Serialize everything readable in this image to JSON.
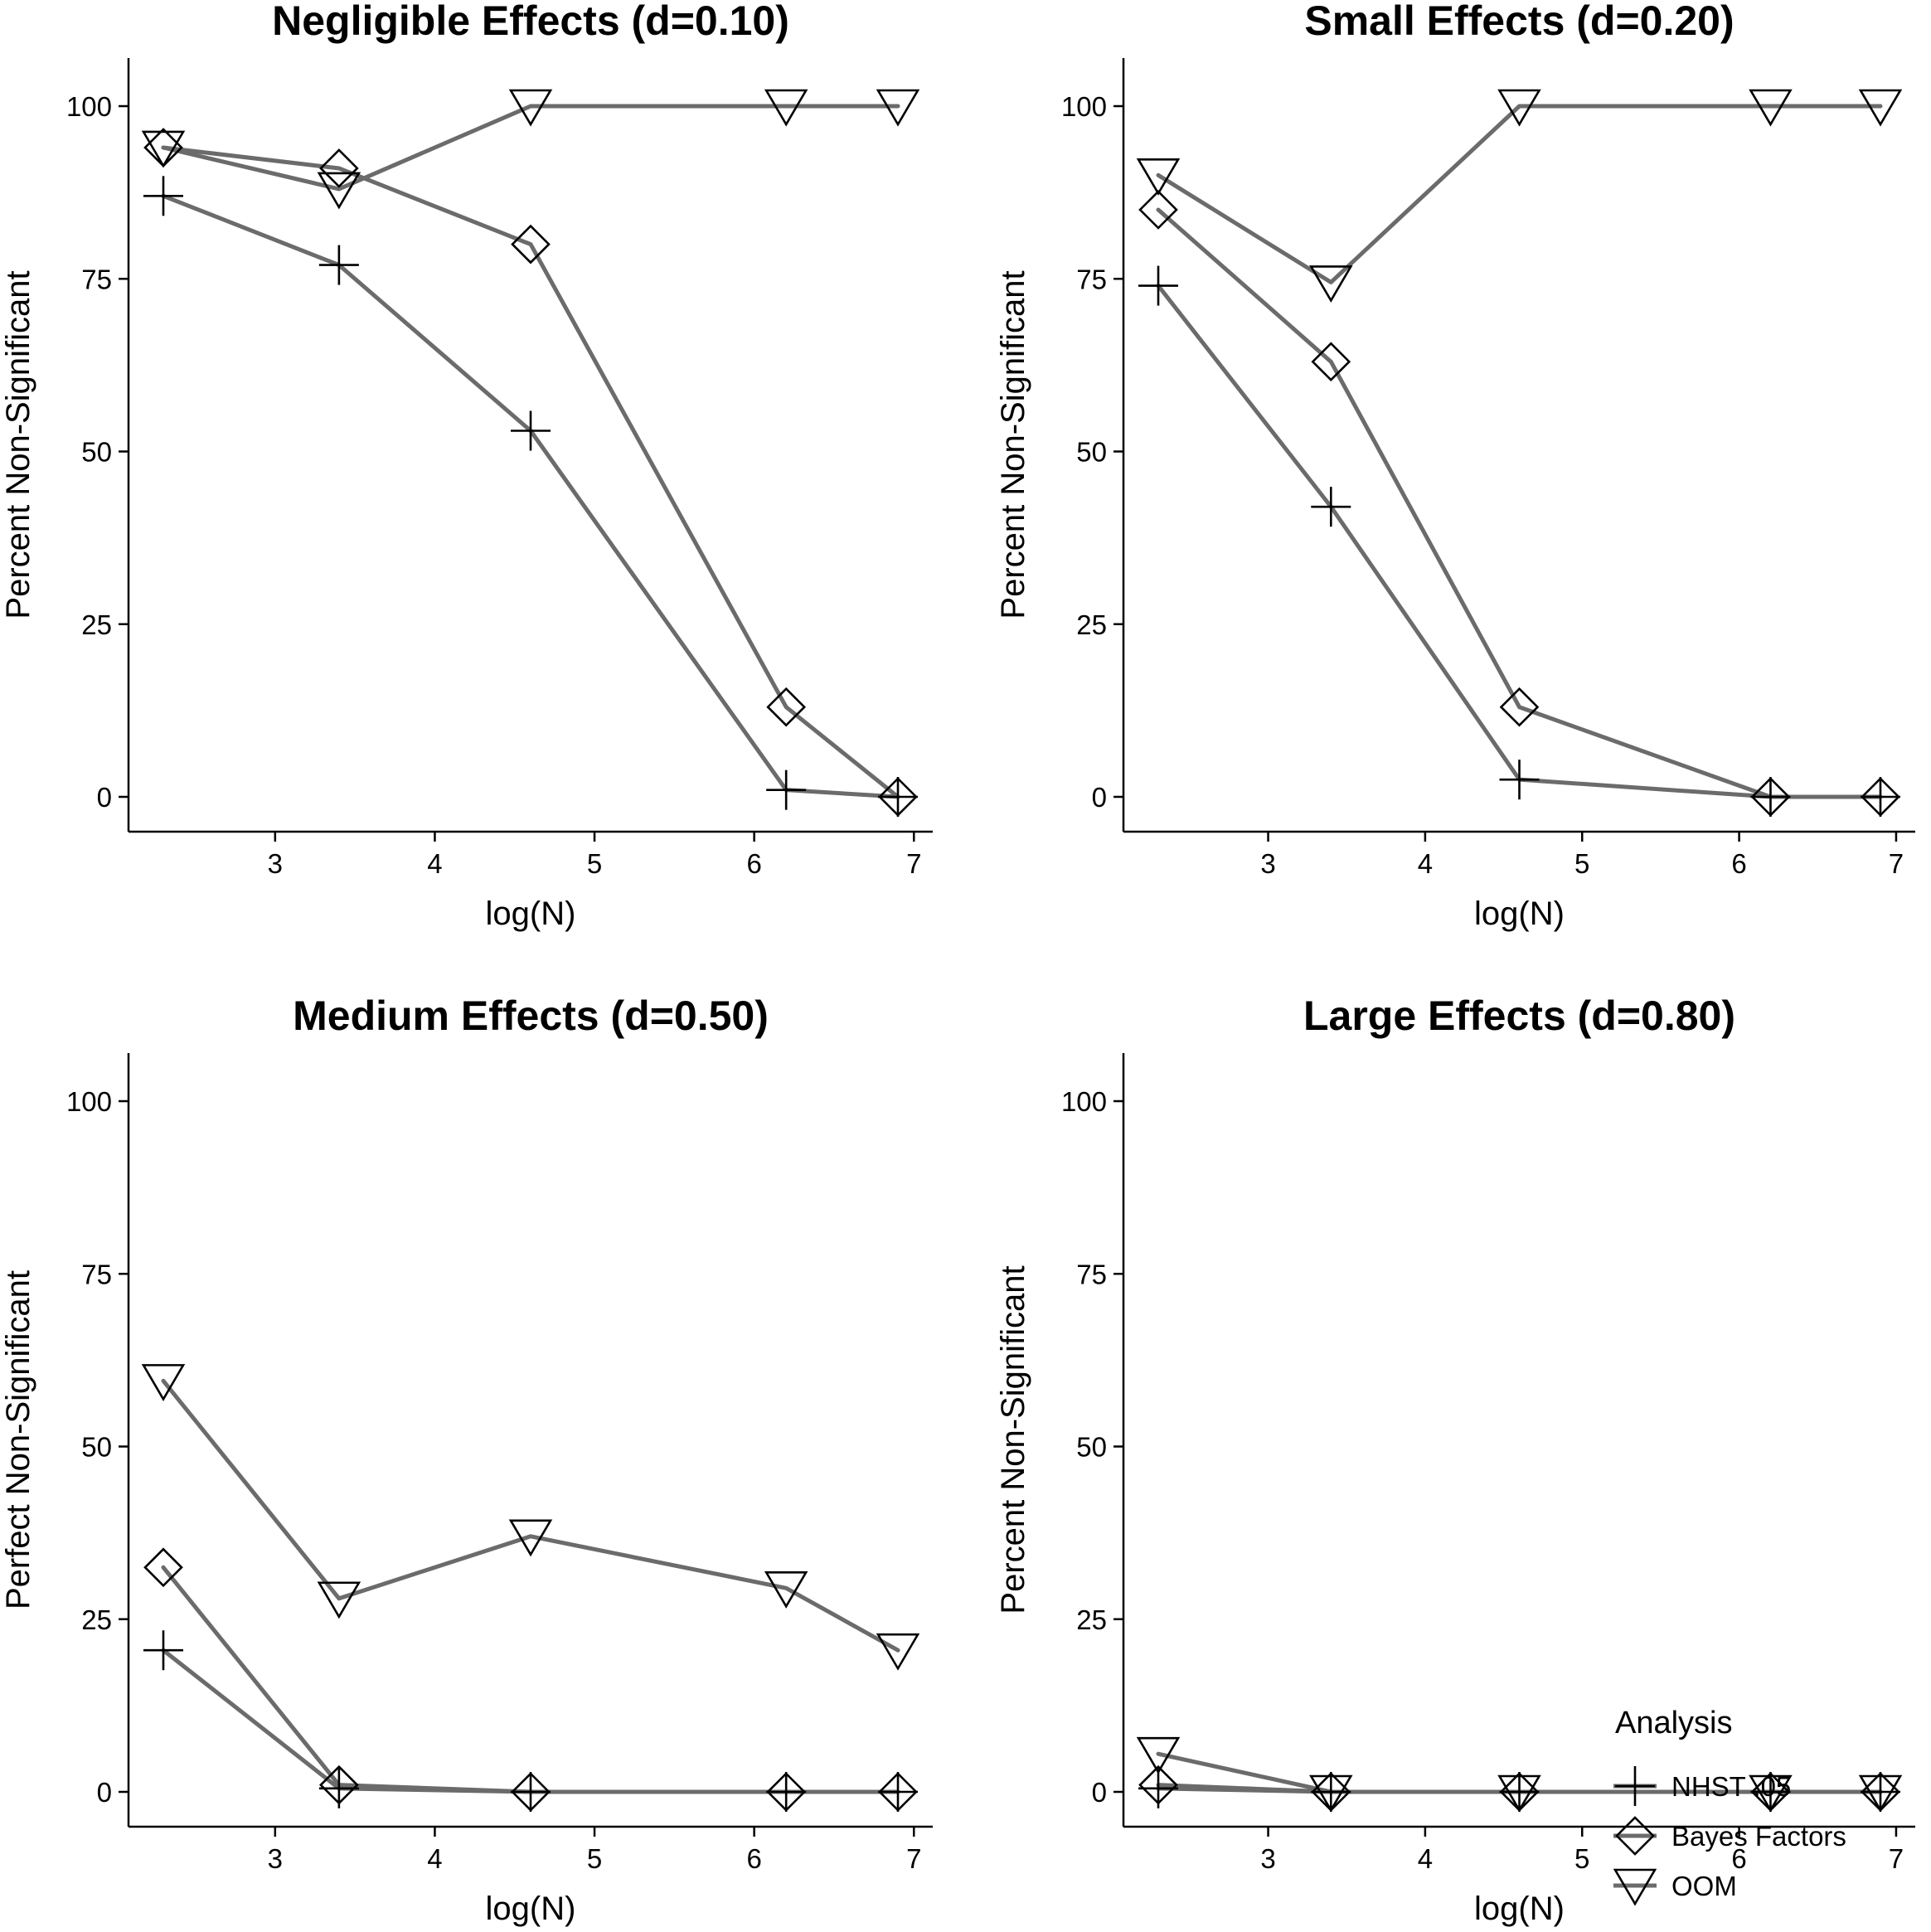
{
  "chart_data": [
    {
      "type": "line",
      "title": "Negligible Effects (d=0.10)",
      "xlabel": "log(N)",
      "ylabel": "Percent Non-Significant",
      "xlim": [
        2.3,
        6.9
      ],
      "ylim": [
        0,
        100
      ],
      "xticks": [
        3,
        4,
        5,
        6,
        7
      ],
      "yticks": [
        0,
        25,
        50,
        75,
        100
      ],
      "x": [
        2.3,
        3.4,
        4.6,
        6.2,
        6.9
      ],
      "series": [
        {
          "name": "NHST .05",
          "marker": "plus",
          "values": [
            87,
            77,
            53,
            1,
            0
          ]
        },
        {
          "name": "Bayes Factors",
          "marker": "diamond",
          "values": [
            94,
            91,
            80,
            13,
            0
          ]
        },
        {
          "name": "OOM",
          "marker": "triangle-down",
          "values": [
            94,
            88,
            100,
            100,
            100
          ]
        }
      ]
    },
    {
      "type": "line",
      "title": "Small Effects (d=0.20)",
      "xlabel": "log(N)",
      "ylabel": "Percent Non-Significant",
      "xlim": [
        2.3,
        6.9
      ],
      "ylim": [
        0,
        100
      ],
      "xticks": [
        3,
        4,
        5,
        6,
        7
      ],
      "yticks": [
        0,
        25,
        50,
        75,
        100
      ],
      "x": [
        2.3,
        3.4,
        4.6,
        6.2,
        6.9
      ],
      "series": [
        {
          "name": "NHST .05",
          "marker": "plus",
          "values": [
            74,
            42,
            2.5,
            0,
            0
          ]
        },
        {
          "name": "Bayes Factors",
          "marker": "diamond",
          "values": [
            85,
            63,
            13,
            0,
            0
          ]
        },
        {
          "name": "OOM",
          "marker": "triangle-down",
          "values": [
            90,
            74.5,
            100,
            100,
            100
          ]
        }
      ]
    },
    {
      "type": "line",
      "title": "Medium Effects (d=0.50)",
      "xlabel": "log(N)",
      "ylabel": "Perfect Non-Significant",
      "xlim": [
        2.3,
        6.9
      ],
      "ylim": [
        0,
        100
      ],
      "xticks": [
        3,
        4,
        5,
        6,
        7
      ],
      "yticks": [
        0,
        25,
        50,
        75,
        100
      ],
      "x": [
        2.3,
        3.4,
        4.6,
        6.2,
        6.9
      ],
      "series": [
        {
          "name": "NHST .05",
          "marker": "plus",
          "values": [
            20.5,
            0.5,
            0,
            0,
            0
          ]
        },
        {
          "name": "Bayes Factors",
          "marker": "diamond",
          "values": [
            32.5,
            1,
            0,
            0,
            0
          ]
        },
        {
          "name": "OOM",
          "marker": "triangle-down",
          "values": [
            59.5,
            28,
            37,
            29.5,
            20.5
          ]
        }
      ]
    },
    {
      "type": "line",
      "title": "Large Effects (d=0.80)",
      "xlabel": "log(N)",
      "ylabel": "Percent Non-Significant",
      "xlim": [
        2.3,
        6.9
      ],
      "ylim": [
        0,
        100
      ],
      "xticks": [
        3,
        4,
        5,
        6,
        7
      ],
      "yticks": [
        0,
        25,
        50,
        75,
        100
      ],
      "x": [
        2.3,
        3.4,
        4.6,
        6.2,
        6.9
      ],
      "series": [
        {
          "name": "NHST .05",
          "marker": "plus",
          "values": [
            0.5,
            0,
            0,
            0,
            0
          ]
        },
        {
          "name": "Bayes Factors",
          "marker": "diamond",
          "values": [
            1,
            0,
            0,
            0,
            0
          ]
        },
        {
          "name": "OOM",
          "marker": "triangle-down",
          "values": [
            5.5,
            0,
            0,
            0,
            0
          ]
        }
      ],
      "legend": {
        "title": "Analysis",
        "position": "bottom-right",
        "items": [
          {
            "label": "NHST .05",
            "marker": "plus"
          },
          {
            "label": "Bayes Factors",
            "marker": "diamond"
          },
          {
            "label": "OOM",
            "marker": "triangle-down"
          }
        ]
      }
    }
  ],
  "colors": {
    "line": "#6b6b6b",
    "marker": "#000000",
    "axis": "#000000"
  }
}
